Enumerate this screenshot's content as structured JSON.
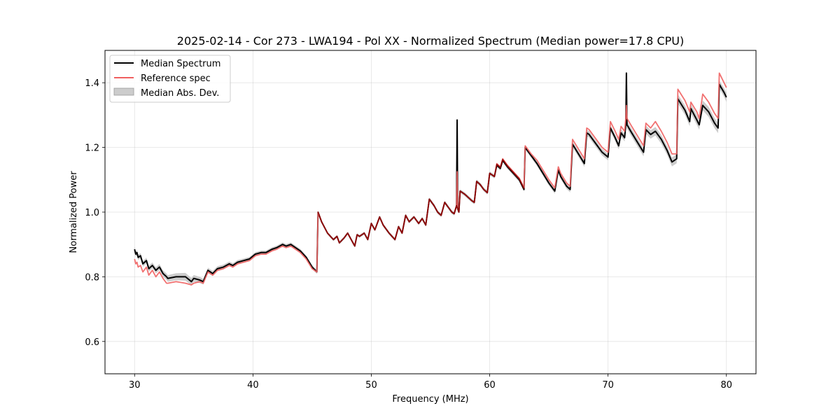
{
  "chart_data": {
    "type": "line",
    "title": "2025-02-14 - Cor 273 - LWA194 - Pol XX - Normalized Spectrum (Median power=17.8 CPU)",
    "xlabel": "Frequency (MHz)",
    "ylabel": "Normalized Power",
    "xlim": [
      27.5,
      82.5
    ],
    "ylim": [
      0.5,
      1.5
    ],
    "xticks": [
      30,
      40,
      50,
      60,
      70,
      80
    ],
    "yticks": [
      0.6,
      0.8,
      1.0,
      1.2,
      1.4
    ],
    "grid": true,
    "legend_position": "top-left",
    "legend": [
      "Median Spectrum",
      "Reference spec",
      "Median Abs. Dev."
    ],
    "colors": {
      "median": "#000000",
      "reference": "#f06060",
      "mad": "#bbbbbb",
      "overlap": "#8b0000"
    },
    "series": [
      {
        "name": "Median Spectrum",
        "x": [
          30.0,
          30.1,
          30.2,
          30.3,
          30.5,
          30.7,
          31.0,
          31.2,
          31.5,
          31.8,
          32.1,
          32.4,
          32.7,
          32.8,
          33.5,
          34.3,
          34.8,
          35.0,
          35.5,
          35.8,
          36.2,
          36.6,
          37.0,
          37.5,
          38.0,
          38.3,
          38.7,
          39.2,
          39.7,
          40.2,
          40.7,
          41.1,
          41.6,
          42.0,
          42.5,
          42.8,
          43.2,
          43.6,
          44.0,
          44.5,
          45.0,
          45.4,
          45.5,
          45.8,
          46.3,
          46.8,
          47.1,
          47.3,
          47.7,
          48.0,
          48.3,
          48.6,
          48.8,
          49.0,
          49.4,
          49.7,
          50.0,
          50.3,
          50.7,
          51.0,
          51.5,
          52.0,
          52.3,
          52.6,
          52.9,
          53.2,
          53.6,
          54.0,
          54.3,
          54.6,
          54.9,
          55.3,
          55.6,
          55.9,
          56.2,
          56.5,
          56.8,
          57.0,
          57.2,
          57.25,
          57.3,
          57.4,
          57.5,
          57.9,
          58.2,
          58.5,
          58.7,
          58.9,
          59.2,
          59.5,
          59.8,
          60.0,
          60.4,
          60.6,
          60.9,
          61.1,
          61.5,
          62.0,
          62.5,
          62.9,
          63.0,
          63.5,
          64.0,
          64.5,
          65.0,
          65.5,
          65.8,
          66.0,
          66.5,
          66.8,
          67.0,
          67.5,
          68.0,
          68.2,
          68.4,
          69.0,
          69.5,
          70.0,
          70.2,
          70.6,
          70.9,
          71.1,
          71.4,
          71.5,
          71.55,
          71.6,
          72.0,
          72.5,
          73.0,
          73.2,
          73.6,
          74.0,
          74.5,
          75.0,
          75.4,
          75.8,
          75.9,
          76.5,
          76.9,
          77.0,
          77.5,
          77.7,
          78.0,
          78.5,
          79.0,
          79.3,
          79.4,
          79.8,
          80.0
        ],
        "y": [
          0.885,
          0.87,
          0.875,
          0.86,
          0.865,
          0.84,
          0.85,
          0.825,
          0.835,
          0.82,
          0.83,
          0.81,
          0.8,
          0.795,
          0.8,
          0.8,
          0.785,
          0.795,
          0.79,
          0.785,
          0.82,
          0.81,
          0.825,
          0.83,
          0.84,
          0.835,
          0.845,
          0.85,
          0.855,
          0.87,
          0.875,
          0.875,
          0.885,
          0.89,
          0.9,
          0.895,
          0.9,
          0.89,
          0.88,
          0.86,
          0.83,
          0.815,
          1.0,
          0.97,
          0.935,
          0.915,
          0.925,
          0.905,
          0.92,
          0.935,
          0.915,
          0.895,
          0.93,
          0.925,
          0.935,
          0.915,
          0.965,
          0.945,
          0.985,
          0.96,
          0.935,
          0.915,
          0.955,
          0.935,
          0.99,
          0.97,
          0.985,
          0.965,
          0.98,
          0.96,
          1.04,
          1.02,
          1.0,
          0.99,
          1.03,
          1.015,
          1.0,
          0.995,
          1.02,
          1.285,
          1.01,
          1.0,
          1.065,
          1.055,
          1.045,
          1.035,
          1.03,
          1.095,
          1.085,
          1.07,
          1.06,
          1.12,
          1.11,
          1.145,
          1.135,
          1.16,
          1.14,
          1.12,
          1.1,
          1.07,
          1.2,
          1.175,
          1.15,
          1.12,
          1.09,
          1.065,
          1.13,
          1.11,
          1.08,
          1.07,
          1.21,
          1.18,
          1.15,
          1.245,
          1.24,
          1.21,
          1.185,
          1.17,
          1.26,
          1.23,
          1.205,
          1.245,
          1.23,
          1.27,
          1.43,
          1.27,
          1.245,
          1.215,
          1.185,
          1.255,
          1.24,
          1.25,
          1.225,
          1.19,
          1.155,
          1.165,
          1.35,
          1.315,
          1.28,
          1.32,
          1.285,
          1.27,
          1.33,
          1.31,
          1.275,
          1.26,
          1.395,
          1.37,
          1.355
        ]
      },
      {
        "name": "Reference spec",
        "x": [
          30.0,
          30.1,
          30.2,
          30.3,
          30.5,
          30.7,
          31.0,
          31.2,
          31.5,
          31.8,
          32.1,
          32.4,
          32.7,
          32.8,
          33.5,
          34.3,
          34.8,
          35.0,
          35.5,
          35.8,
          36.2,
          36.6,
          37.0,
          37.5,
          38.0,
          38.3,
          38.7,
          39.2,
          39.7,
          40.2,
          40.7,
          41.1,
          41.6,
          42.0,
          42.5,
          42.8,
          43.2,
          43.6,
          44.0,
          44.5,
          45.0,
          45.4,
          45.5,
          45.8,
          46.3,
          46.8,
          47.1,
          47.3,
          47.7,
          48.0,
          48.3,
          48.6,
          48.8,
          49.0,
          49.4,
          49.7,
          50.0,
          50.3,
          50.7,
          51.0,
          51.5,
          52.0,
          52.3,
          52.6,
          52.9,
          53.2,
          53.6,
          54.0,
          54.3,
          54.6,
          54.9,
          55.3,
          55.6,
          55.9,
          56.2,
          56.5,
          56.8,
          57.0,
          57.2,
          57.25,
          57.3,
          57.4,
          57.5,
          57.9,
          58.2,
          58.5,
          58.7,
          58.9,
          59.2,
          59.5,
          59.8,
          60.0,
          60.4,
          60.6,
          60.9,
          61.1,
          61.5,
          62.0,
          62.5,
          62.9,
          63.0,
          63.5,
          64.0,
          64.5,
          65.0,
          65.5,
          65.8,
          66.0,
          66.5,
          66.8,
          67.0,
          67.5,
          68.0,
          68.2,
          68.4,
          69.0,
          69.5,
          70.0,
          70.2,
          70.6,
          70.9,
          71.1,
          71.4,
          71.5,
          71.55,
          71.6,
          72.0,
          72.5,
          73.0,
          73.2,
          73.6,
          74.0,
          74.5,
          75.0,
          75.4,
          75.8,
          75.9,
          76.5,
          76.9,
          77.0,
          77.5,
          77.7,
          78.0,
          78.5,
          79.0,
          79.3,
          79.4,
          79.8,
          80.0
        ],
        "y": [
          0.855,
          0.84,
          0.845,
          0.83,
          0.835,
          0.815,
          0.83,
          0.805,
          0.82,
          0.8,
          0.815,
          0.795,
          0.78,
          0.78,
          0.785,
          0.78,
          0.775,
          0.78,
          0.785,
          0.78,
          0.815,
          0.805,
          0.82,
          0.825,
          0.835,
          0.83,
          0.84,
          0.845,
          0.85,
          0.865,
          0.87,
          0.87,
          0.88,
          0.885,
          0.895,
          0.89,
          0.895,
          0.885,
          0.875,
          0.855,
          0.825,
          0.815,
          1.0,
          0.97,
          0.935,
          0.915,
          0.925,
          0.905,
          0.92,
          0.935,
          0.915,
          0.895,
          0.93,
          0.925,
          0.935,
          0.915,
          0.965,
          0.945,
          0.985,
          0.96,
          0.935,
          0.915,
          0.955,
          0.935,
          0.99,
          0.97,
          0.985,
          0.965,
          0.98,
          0.96,
          1.04,
          1.02,
          1.0,
          0.99,
          1.03,
          1.015,
          1.0,
          0.995,
          1.02,
          1.125,
          1.01,
          1.0,
          1.065,
          1.055,
          1.045,
          1.035,
          1.03,
          1.095,
          1.085,
          1.07,
          1.06,
          1.12,
          1.11,
          1.15,
          1.14,
          1.165,
          1.145,
          1.125,
          1.105,
          1.075,
          1.205,
          1.18,
          1.16,
          1.13,
          1.1,
          1.075,
          1.14,
          1.12,
          1.09,
          1.08,
          1.225,
          1.195,
          1.165,
          1.26,
          1.255,
          1.225,
          1.2,
          1.185,
          1.28,
          1.25,
          1.225,
          1.265,
          1.25,
          1.29,
          1.33,
          1.29,
          1.265,
          1.235,
          1.205,
          1.275,
          1.26,
          1.28,
          1.25,
          1.215,
          1.18,
          1.18,
          1.38,
          1.345,
          1.31,
          1.34,
          1.31,
          1.29,
          1.365,
          1.34,
          1.305,
          1.29,
          1.43,
          1.4,
          1.385
        ]
      }
    ],
    "mad_band": {
      "x": [
        30.0,
        32.8,
        34.3,
        36.2,
        40.0,
        44.5,
        45.4,
        45.5,
        60.0,
        66.0,
        68.0,
        70.0,
        71.6,
        75.8,
        79.3,
        79.4,
        80.0
      ],
      "half_width": [
        0.008,
        0.01,
        0.012,
        0.008,
        0.006,
        0.006,
        0.006,
        0.004,
        0.006,
        0.008,
        0.01,
        0.01,
        0.012,
        0.014,
        0.016,
        0.012,
        0.014
      ]
    }
  }
}
